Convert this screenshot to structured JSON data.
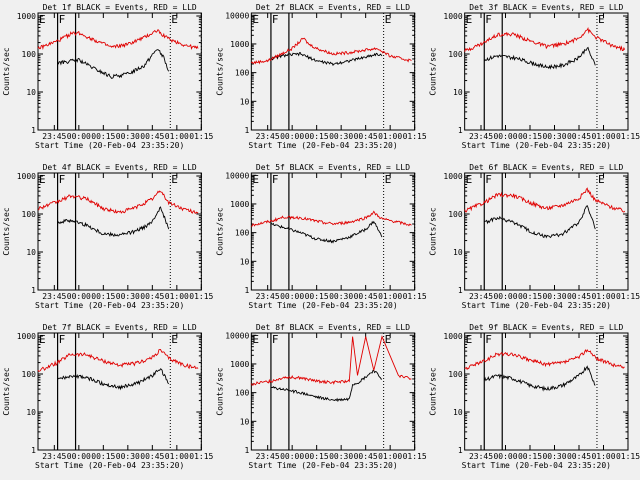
{
  "colors": {
    "background": "#f0f0f0",
    "events": "#000000",
    "lld": "#e00000",
    "axes": "#000000"
  },
  "chart_data": [
    {
      "type": "line",
      "title": "Det 1f BLACK = Events, RED = LLD",
      "ylabel": "Counts/sec",
      "xlabel": "Start Time (20-Feb-04 23:35:20)",
      "x_ticks": [
        "23:45",
        "00:00",
        "00:15",
        "00:30",
        "00:45",
        "01:00",
        "01:15"
      ],
      "y_ticks": [
        "1",
        "10",
        "100",
        "1000"
      ],
      "y_scale": "log",
      "ylim": [
        1,
        1200
      ],
      "xlim_minutes_from_start": [
        0,
        100
      ],
      "markers": [
        {
          "label": "E",
          "x": "23:35"
        },
        {
          "label": "F",
          "x": "23:47"
        },
        {
          "label": "E",
          "x": "00:56"
        }
      ],
      "solid_lines_at": [
        "23:47",
        "23:58"
      ],
      "dotted_lines_at": [
        "00:56",
        "01:15"
      ],
      "series": [
        {
          "name": "Events",
          "color": "#000000",
          "x": [
            "23:47",
            "23:50",
            "00:00",
            "00:10",
            "00:20",
            "00:30",
            "00:40",
            "00:48",
            "00:52",
            "00:55"
          ],
          "values": [
            60,
            60,
            70,
            40,
            25,
            30,
            50,
            140,
            80,
            35
          ]
        },
        {
          "name": "LLD",
          "color": "#e00000",
          "x": [
            "23:35",
            "23:47",
            "23:55",
            "00:00",
            "00:10",
            "00:20",
            "00:30",
            "00:40",
            "00:48",
            "00:55",
            "01:05",
            "01:13"
          ],
          "values": [
            140,
            220,
            340,
            360,
            230,
            150,
            180,
            270,
            420,
            250,
            170,
            140
          ]
        }
      ]
    },
    {
      "type": "line",
      "title": "Det 2f BLACK = Events, RED = LLD",
      "ylabel": "Counts/sec",
      "xlabel": "Start Time (20-Feb-04 23:35:20)",
      "x_ticks": [
        "23:45",
        "00:00",
        "00:15",
        "00:30",
        "00:45",
        "01:00",
        "01:15"
      ],
      "y_ticks": [
        "1",
        "10",
        "100",
        "1000",
        "10000"
      ],
      "y_scale": "log",
      "ylim": [
        1,
        12000
      ],
      "xlim_minutes_from_start": [
        0,
        100
      ],
      "markers": [
        {
          "label": "E",
          "x": "23:35"
        },
        {
          "label": "F",
          "x": "23:47"
        },
        {
          "label": "E",
          "x": "00:56"
        }
      ],
      "solid_lines_at": [
        "23:47",
        "23:58"
      ],
      "dotted_lines_at": [
        "00:56",
        "01:15"
      ],
      "series": [
        {
          "name": "Events",
          "color": "#000000",
          "x": [
            "23:47",
            "23:55",
            "00:05",
            "00:15",
            "00:25",
            "00:35",
            "00:45",
            "00:52",
            "00:55"
          ],
          "values": [
            300,
            400,
            450,
            260,
            200,
            260,
            350,
            450,
            380
          ]
        },
        {
          "name": "LLD",
          "color": "#e00000",
          "x": [
            "23:35",
            "23:45",
            "23:55",
            "00:00",
            "00:07",
            "00:10",
            "00:15",
            "00:25",
            "00:35",
            "00:45",
            "00:52",
            "01:00",
            "01:13"
          ],
          "values": [
            220,
            260,
            500,
            700,
            1600,
            1000,
            700,
            450,
            500,
            620,
            700,
            380,
            260
          ]
        }
      ]
    },
    {
      "type": "line",
      "title": "Det 3f BLACK = Events, RED = LLD",
      "ylabel": "Counts/sec",
      "xlabel": "Start Time (20-Feb-04 23:35:20)",
      "x_ticks": [
        "23:45",
        "00:00",
        "00:15",
        "00:30",
        "00:45",
        "01:00",
        "01:15"
      ],
      "y_ticks": [
        "1",
        "10",
        "100",
        "1000"
      ],
      "y_scale": "log",
      "ylim": [
        1,
        1200
      ],
      "xlim_minutes_from_start": [
        0,
        100
      ],
      "markers": [
        {
          "label": "E",
          "x": "23:35"
        },
        {
          "label": "F",
          "x": "23:47"
        },
        {
          "label": "E",
          "x": "00:56"
        }
      ],
      "solid_lines_at": [
        "23:47",
        "23:58"
      ],
      "dotted_lines_at": [
        "00:56",
        "01:15"
      ],
      "series": [
        {
          "name": "Events",
          "color": "#000000",
          "x": [
            "23:47",
            "23:55",
            "00:05",
            "00:15",
            "00:25",
            "00:35",
            "00:45",
            "00:50",
            "00:55"
          ],
          "values": [
            70,
            90,
            80,
            60,
            45,
            50,
            80,
            150,
            50
          ]
        },
        {
          "name": "LLD",
          "color": "#e00000",
          "x": [
            "23:35",
            "23:47",
            "23:55",
            "00:05",
            "00:15",
            "00:25",
            "00:35",
            "00:45",
            "00:50",
            "00:55",
            "01:05",
            "01:13"
          ],
          "values": [
            120,
            200,
            330,
            330,
            220,
            160,
            180,
            260,
            450,
            280,
            170,
            130
          ]
        }
      ]
    },
    {
      "type": "line",
      "title": "Det 4f BLACK = Events, RED = LLD",
      "ylabel": "Counts/sec",
      "xlabel": "Start Time (20-Feb-04 23:35:20)",
      "x_ticks": [
        "23:45",
        "00:00",
        "00:15",
        "00:30",
        "00:45",
        "01:00",
        "01:15"
      ],
      "y_ticks": [
        "1",
        "10",
        "100",
        "1000"
      ],
      "y_scale": "log",
      "ylim": [
        1,
        1200
      ],
      "xlim_minutes_from_start": [
        0,
        100
      ],
      "markers": [
        {
          "label": "E",
          "x": "23:35"
        },
        {
          "label": "F",
          "x": "23:47"
        },
        {
          "label": "E",
          "x": "00:56"
        }
      ],
      "solid_lines_at": [
        "23:47",
        "23:58"
      ],
      "dotted_lines_at": [
        "00:56",
        "01:15"
      ],
      "series": [
        {
          "name": "Events",
          "color": "#000000",
          "x": [
            "23:47",
            "23:55",
            "00:05",
            "00:15",
            "00:25",
            "00:35",
            "00:45",
            "00:50",
            "00:55"
          ],
          "values": [
            60,
            70,
            50,
            30,
            28,
            35,
            60,
            160,
            40
          ]
        },
        {
          "name": "LLD",
          "color": "#e00000",
          "x": [
            "23:35",
            "23:47",
            "23:55",
            "00:05",
            "00:15",
            "00:25",
            "00:35",
            "00:45",
            "00:50",
            "00:55",
            "01:05",
            "01:13"
          ],
          "values": [
            140,
            210,
            300,
            250,
            140,
            110,
            150,
            250,
            420,
            200,
            130,
            110
          ]
        }
      ]
    },
    {
      "type": "line",
      "title": "Det 5f BLACK = Events, RED = LLD",
      "ylabel": "Counts/sec",
      "xlabel": "Start Time (20-Feb-04 23:35:20)",
      "x_ticks": [
        "23:45",
        "00:00",
        "00:15",
        "00:30",
        "00:45",
        "01:00",
        "01:15"
      ],
      "y_ticks": [
        "1",
        "10",
        "100",
        "1000",
        "10000"
      ],
      "y_scale": "log",
      "ylim": [
        1,
        12000
      ],
      "xlim_minutes_from_start": [
        0,
        100
      ],
      "markers": [
        {
          "label": "E",
          "x": "23:35"
        },
        {
          "label": "F",
          "x": "23:47"
        },
        {
          "label": "E",
          "x": "00:56"
        }
      ],
      "solid_lines_at": [
        "23:47",
        "23:58"
      ],
      "dotted_lines_at": [
        "00:56",
        "01:15"
      ],
      "series": [
        {
          "name": "Events",
          "color": "#000000",
          "x": [
            "23:47",
            "23:55",
            "00:05",
            "00:15",
            "00:25",
            "00:35",
            "00:45",
            "00:50",
            "00:55"
          ],
          "values": [
            200,
            150,
            100,
            60,
            50,
            70,
            130,
            250,
            70
          ]
        },
        {
          "name": "LLD",
          "color": "#e00000",
          "x": [
            "23:35",
            "23:47",
            "23:55",
            "00:05",
            "00:15",
            "00:25",
            "00:35",
            "00:45",
            "00:50",
            "00:55",
            "01:05",
            "01:13"
          ],
          "values": [
            180,
            250,
            350,
            330,
            250,
            200,
            230,
            330,
            500,
            300,
            230,
            180
          ]
        }
      ]
    },
    {
      "type": "line",
      "title": "Det 6f BLACK = Events, RED = LLD",
      "ylabel": "Counts/sec",
      "xlabel": "Start Time (20-Feb-04 23:35:20)",
      "x_ticks": [
        "23:45",
        "00:00",
        "00:15",
        "00:30",
        "00:45",
        "01:00",
        "01:15"
      ],
      "y_ticks": [
        "1",
        "10",
        "100",
        "1000"
      ],
      "y_scale": "log",
      "ylim": [
        1,
        1200
      ],
      "xlim_minutes_from_start": [
        0,
        100
      ],
      "markers": [
        {
          "label": "E",
          "x": "23:35"
        },
        {
          "label": "F",
          "x": "23:47"
        },
        {
          "label": "E",
          "x": "00:56"
        }
      ],
      "solid_lines_at": [
        "23:47",
        "23:58"
      ],
      "dotted_lines_at": [
        "00:56",
        "01:15"
      ],
      "series": [
        {
          "name": "Events",
          "color": "#000000",
          "x": [
            "23:47",
            "23:55",
            "00:05",
            "00:15",
            "00:25",
            "00:35",
            "00:45",
            "00:50",
            "00:55"
          ],
          "values": [
            60,
            80,
            60,
            35,
            25,
            30,
            60,
            170,
            40
          ]
        },
        {
          "name": "LLD",
          "color": "#e00000",
          "x": [
            "23:35",
            "23:47",
            "23:55",
            "00:05",
            "00:15",
            "00:25",
            "00:35",
            "00:45",
            "00:50",
            "00:55",
            "01:05",
            "01:13"
          ],
          "values": [
            120,
            200,
            320,
            310,
            200,
            140,
            170,
            260,
            450,
            230,
            150,
            120
          ]
        }
      ]
    },
    {
      "type": "line",
      "title": "Det 7f BLACK = Events, RED = LLD",
      "ylabel": "Counts/sec",
      "xlabel": "Start Time (20-Feb-04 23:35:20)",
      "x_ticks": [
        "23:45",
        "00:00",
        "00:15",
        "00:30",
        "00:45",
        "01:00",
        "01:15"
      ],
      "y_ticks": [
        "1",
        "10",
        "100",
        "1000"
      ],
      "y_scale": "log",
      "ylim": [
        1,
        1200
      ],
      "xlim_minutes_from_start": [
        0,
        100
      ],
      "markers": [
        {
          "label": "E",
          "x": "23:35"
        },
        {
          "label": "F",
          "x": "23:47"
        },
        {
          "label": "E",
          "x": "00:56"
        }
      ],
      "solid_lines_at": [
        "23:47",
        "23:58"
      ],
      "dotted_lines_at": [
        "00:56",
        "01:15"
      ],
      "series": [
        {
          "name": "Events",
          "color": "#000000",
          "x": [
            "23:47",
            "23:55",
            "00:05",
            "00:15",
            "00:25",
            "00:35",
            "00:45",
            "00:50",
            "00:55"
          ],
          "values": [
            70,
            90,
            80,
            55,
            45,
            55,
            90,
            140,
            55
          ]
        },
        {
          "name": "LLD",
          "color": "#e00000",
          "x": [
            "23:35",
            "23:47",
            "23:55",
            "00:05",
            "00:15",
            "00:25",
            "00:35",
            "00:45",
            "00:50",
            "00:55",
            "01:05",
            "01:13"
          ],
          "values": [
            120,
            200,
            330,
            320,
            220,
            170,
            190,
            270,
            430,
            260,
            170,
            140
          ]
        }
      ]
    },
    {
      "type": "line",
      "title": "Det 8f BLACK = Events, RED = LLD",
      "ylabel": "Counts/sec",
      "xlabel": "Start Time (20-Feb-04 23:35:20)",
      "x_ticks": [
        "23:45",
        "00:00",
        "00:15",
        "00:30",
        "00:45",
        "01:00",
        "01:15"
      ],
      "y_ticks": [
        "1",
        "10",
        "100",
        "1000",
        "10000"
      ],
      "y_scale": "log",
      "ylim": [
        1,
        12000
      ],
      "xlim_minutes_from_start": [
        0,
        100
      ],
      "markers": [
        {
          "label": "E",
          "x": "23:35"
        },
        {
          "label": "F",
          "x": "23:47"
        },
        {
          "label": "E",
          "x": "00:56"
        }
      ],
      "solid_lines_at": [
        "23:47",
        "23:58"
      ],
      "dotted_lines_at": [
        "00:56",
        "01:15"
      ],
      "series": [
        {
          "name": "Events",
          "color": "#000000",
          "x": [
            "23:47",
            "23:55",
            "00:05",
            "00:15",
            "00:25",
            "00:35",
            "00:37",
            "00:40",
            "00:45",
            "00:50",
            "00:55"
          ],
          "values": [
            150,
            130,
            100,
            70,
            55,
            60,
            200,
            220,
            350,
            600,
            300
          ]
        },
        {
          "name": "LLD",
          "color": "#e00000",
          "x": [
            "23:35",
            "23:47",
            "23:55",
            "00:05",
            "00:15",
            "00:25",
            "00:35",
            "00:37",
            "00:40",
            "00:45",
            "00:50",
            "00:55",
            "01:05",
            "01:13"
          ],
          "values": [
            200,
            250,
            350,
            330,
            250,
            230,
            250,
            9000,
            400,
            9000,
            600,
            9000,
            400,
            300
          ]
        }
      ]
    },
    {
      "type": "line",
      "title": "Det 9f BLACK = Events, RED = LLD",
      "ylabel": "Counts/sec",
      "xlabel": "Start Time (20-Feb-04 23:35:20)",
      "x_ticks": [
        "23:45",
        "00:00",
        "00:15",
        "00:30",
        "00:45",
        "01:00",
        "01:15"
      ],
      "y_ticks": [
        "1",
        "10",
        "100",
        "1000"
      ],
      "y_scale": "log",
      "ylim": [
        1,
        1200
      ],
      "xlim_minutes_from_start": [
        0,
        100
      ],
      "markers": [
        {
          "label": "E",
          "x": "23:35"
        },
        {
          "label": "F",
          "x": "23:47"
        },
        {
          "label": "E",
          "x": "00:56"
        }
      ],
      "solid_lines_at": [
        "23:47",
        "23:58"
      ],
      "dotted_lines_at": [
        "00:56",
        "01:15"
      ],
      "series": [
        {
          "name": "Events",
          "color": "#000000",
          "x": [
            "23:47",
            "23:55",
            "00:05",
            "00:15",
            "00:25",
            "00:35",
            "00:45",
            "00:50",
            "00:55"
          ],
          "values": [
            70,
            90,
            75,
            50,
            40,
            50,
            90,
            160,
            50
          ]
        },
        {
          "name": "LLD",
          "color": "#e00000",
          "x": [
            "23:35",
            "23:47",
            "23:55",
            "00:05",
            "00:15",
            "00:25",
            "00:35",
            "00:45",
            "00:50",
            "00:55",
            "01:05",
            "01:13"
          ],
          "values": [
            140,
            220,
            340,
            330,
            230,
            180,
            200,
            280,
            450,
            270,
            180,
            150
          ]
        }
      ]
    }
  ]
}
